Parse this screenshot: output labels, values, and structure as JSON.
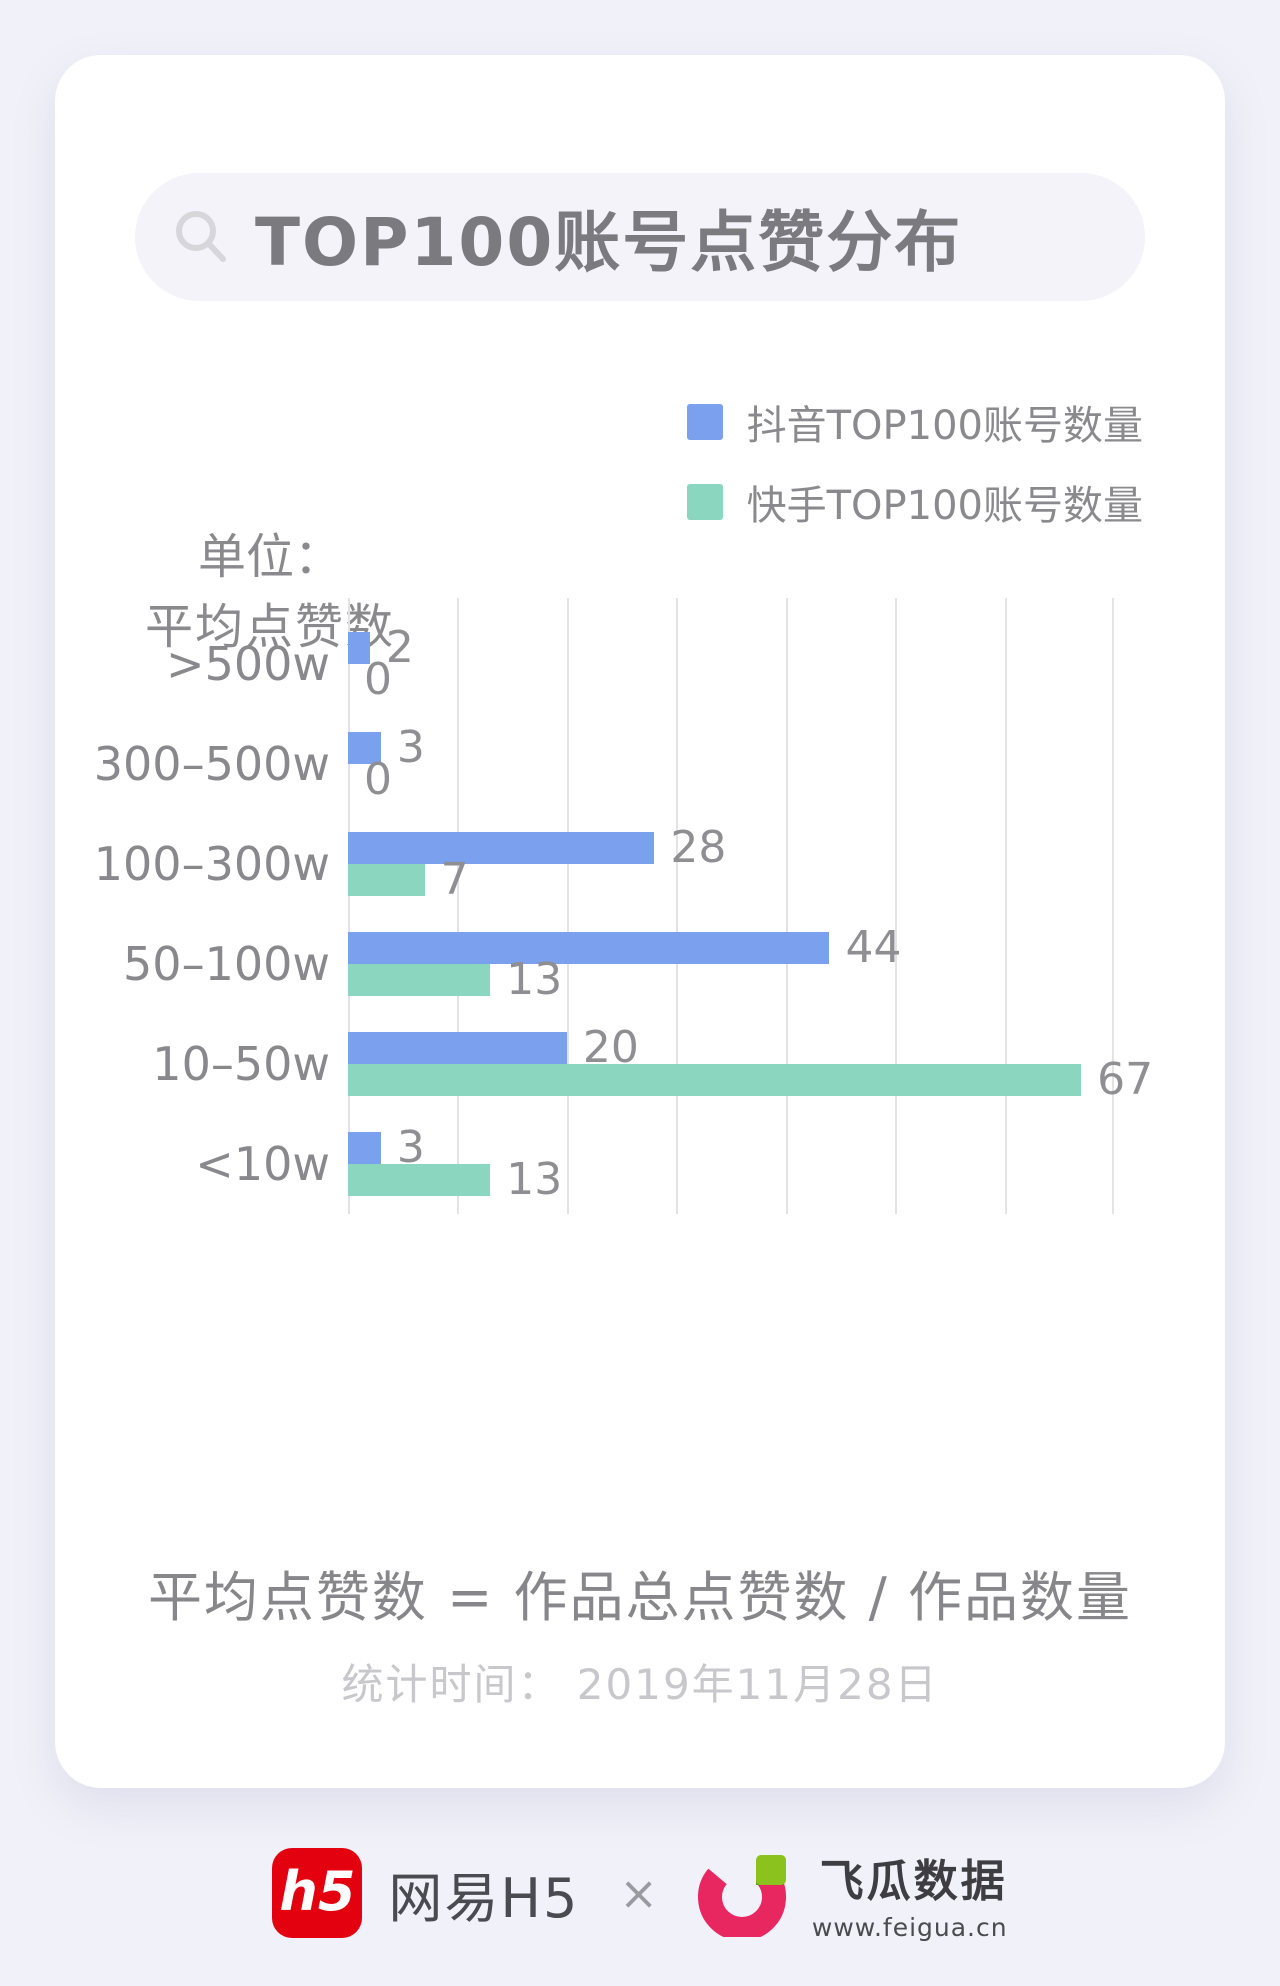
{
  "header": {
    "title": "TOP100账号点赞分布"
  },
  "legend": {
    "items": [
      {
        "label": "抖音TOP100账号数量",
        "color": "#7AA0EE"
      },
      {
        "label": "快手TOP100账号数量",
        "color": "#8BD6BE"
      }
    ]
  },
  "unit": {
    "prefix": "单位：",
    "label": "平均点赞数"
  },
  "chart_data": {
    "type": "bar",
    "orientation": "horizontal",
    "title": "TOP100账号点赞分布",
    "unit_label": "单位：平均点赞数",
    "categories": [
      ">500w",
      "300–500w",
      "100–300w",
      "50–100w",
      "10–50w",
      "<10w"
    ],
    "series": [
      {
        "name": "抖音TOP100账号数量",
        "color": "#7AA0EE",
        "values": [
          2,
          3,
          28,
          44,
          20,
          3
        ]
      },
      {
        "name": "快手TOP100账号数量",
        "color": "#8BD6BE",
        "values": [
          0,
          0,
          7,
          13,
          67,
          13
        ]
      }
    ],
    "xlim": [
      0,
      70
    ],
    "gridline_step": 10,
    "grid": true,
    "show_value_labels": true,
    "legend_position": "top-right"
  },
  "notes": {
    "formula": "平均点赞数 = 作品总点赞数 / 作品数量",
    "stat_time": "统计时间： 2019年11月28日"
  },
  "footer": {
    "netease_badge": "h5",
    "netease_name": "网易H5",
    "separator": "×",
    "feigua_name": "飞瓜数据",
    "feigua_url": "www.feigua.cn"
  },
  "colors": {
    "page_bg": "#F1F1F9",
    "card_bg": "#FFFFFF",
    "pill_bg": "#F3F3F9",
    "douyin_blue": "#7AA0EE",
    "kuaishou_green": "#8BD6BE",
    "gridline": "#E2E2E7",
    "text_gray": "#8A8A8E",
    "muted_gray": "#C7C7CC",
    "netease_red": "#E3000F",
    "feigua_pink": "#E8265F",
    "feigua_green": "#8CC21E"
  }
}
